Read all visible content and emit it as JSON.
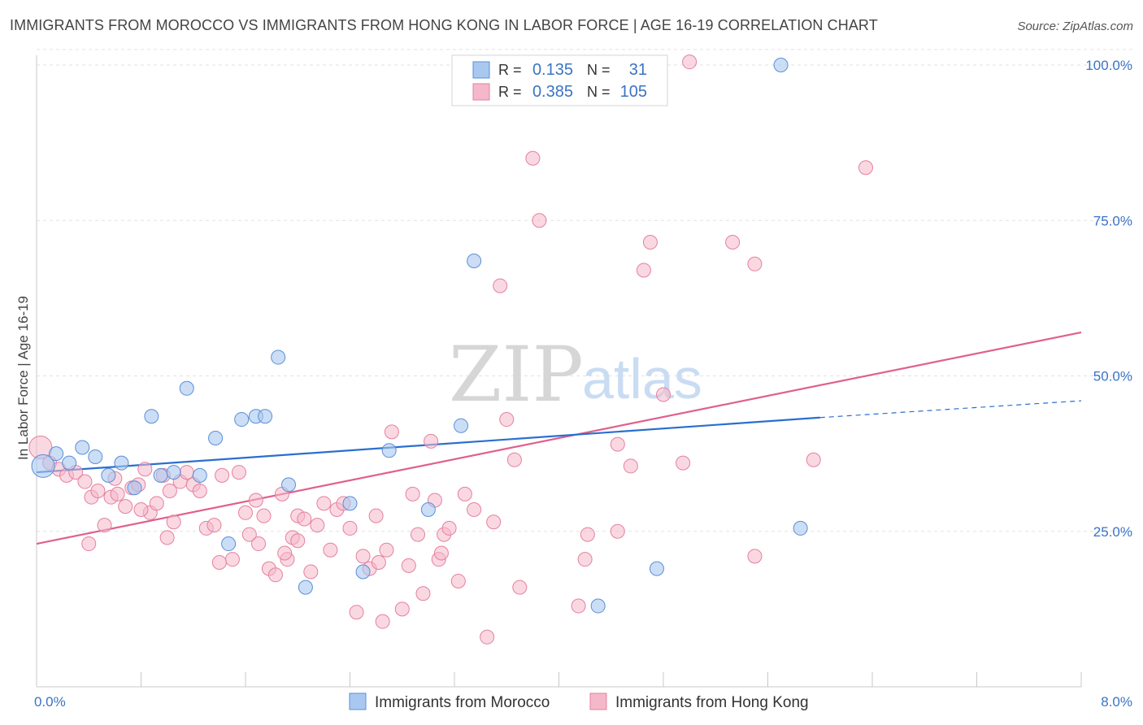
{
  "title": "IMMIGRANTS FROM MOROCCO VS IMMIGRANTS FROM HONG KONG IN LABOR FORCE | AGE 16-19 CORRELATION CHART",
  "source": "Source: ZipAtlas.com",
  "watermark": {
    "zip": "ZIP",
    "atlas": "atlas"
  },
  "colors": {
    "morocco_fill": "#a9c8f0",
    "morocco_stroke": "#5b8fd6",
    "morocco_line": "#2a6fcf",
    "hongkong_fill": "#f5b8cb",
    "hongkong_stroke": "#e5809f",
    "hongkong_line": "#e0608c",
    "axis_label": "#3a74c4",
    "grid": "#e2e2e2"
  },
  "legend": {
    "rows": [
      {
        "series": "morocco",
        "r_label": "R =",
        "r_value": "0.135",
        "n_label": "N =",
        "n_value": "31"
      },
      {
        "series": "hongkong",
        "r_label": "R =",
        "r_value": "0.385",
        "n_label": "N =",
        "n_value": "105"
      }
    ]
  },
  "chart_data": {
    "type": "scatter",
    "xlabel": "",
    "ylabel": "In Labor Force | Age 16-19",
    "xlim": [
      0,
      8
    ],
    "ylim": [
      0,
      105
    ],
    "x_tick_labels": [
      "0.0%",
      "8.0%"
    ],
    "y_ticks": [
      25,
      50,
      75,
      100
    ],
    "y_tick_labels": [
      "25.0%",
      "50.0%",
      "75.0%",
      "100.0%"
    ],
    "grid": true,
    "legend_position": "top-center",
    "series": [
      {
        "name": "Immigrants from Morocco",
        "color": "#a9c8f0",
        "trend": {
          "x0": 0,
          "y0": 34.5,
          "x1": 6.0,
          "y1": 43.3,
          "dash_to_x": 8.0,
          "dash_to_y": 46.0
        },
        "points": [
          {
            "x": 0.05,
            "y": 35.5,
            "big": true
          },
          {
            "x": 0.15,
            "y": 37.5
          },
          {
            "x": 0.25,
            "y": 36.0
          },
          {
            "x": 0.35,
            "y": 38.5
          },
          {
            "x": 0.45,
            "y": 37.0
          },
          {
            "x": 0.55,
            "y": 34.0
          },
          {
            "x": 0.65,
            "y": 36.0
          },
          {
            "x": 0.75,
            "y": 32.0
          },
          {
            "x": 0.88,
            "y": 43.5
          },
          {
            "x": 0.95,
            "y": 34.0
          },
          {
            "x": 1.05,
            "y": 34.5
          },
          {
            "x": 1.15,
            "y": 48.0
          },
          {
            "x": 1.25,
            "y": 34.0
          },
          {
            "x": 1.37,
            "y": 40.0
          },
          {
            "x": 1.47,
            "y": 23.0
          },
          {
            "x": 1.57,
            "y": 43.0
          },
          {
            "x": 1.68,
            "y": 43.5
          },
          {
            "x": 1.75,
            "y": 43.5
          },
          {
            "x": 1.85,
            "y": 53.0
          },
          {
            "x": 1.93,
            "y": 32.5
          },
          {
            "x": 2.06,
            "y": 16.0
          },
          {
            "x": 2.4,
            "y": 29.5
          },
          {
            "x": 2.5,
            "y": 18.5
          },
          {
            "x": 2.7,
            "y": 38.0
          },
          {
            "x": 3.0,
            "y": 28.5
          },
          {
            "x": 3.25,
            "y": 42.0
          },
          {
            "x": 3.35,
            "y": 68.5
          },
          {
            "x": 4.3,
            "y": 13.0
          },
          {
            "x": 4.75,
            "y": 19.0
          },
          {
            "x": 5.7,
            "y": 100.0
          },
          {
            "x": 5.85,
            "y": 25.5
          }
        ]
      },
      {
        "name": "Immigrants from Hong Kong",
        "color": "#f5b8cb",
        "trend": {
          "x0": 0,
          "y0": 23.0,
          "x1": 8.0,
          "y1": 57.0
        },
        "points": [
          {
            "x": 0.03,
            "y": 38.5,
            "big": true
          },
          {
            "x": 0.1,
            "y": 36.0
          },
          {
            "x": 0.17,
            "y": 35.0
          },
          {
            "x": 0.23,
            "y": 34.0
          },
          {
            "x": 0.3,
            "y": 34.5
          },
          {
            "x": 0.37,
            "y": 33.0
          },
          {
            "x": 0.42,
            "y": 30.5
          },
          {
            "x": 0.47,
            "y": 31.5
          },
          {
            "x": 0.52,
            "y": 26.0
          },
          {
            "x": 0.57,
            "y": 30.5
          },
          {
            "x": 0.62,
            "y": 31.0
          },
          {
            "x": 0.68,
            "y": 29.0
          },
          {
            "x": 0.73,
            "y": 32.0
          },
          {
            "x": 0.78,
            "y": 32.5
          },
          {
            "x": 0.83,
            "y": 35.0
          },
          {
            "x": 0.87,
            "y": 28.0
          },
          {
            "x": 0.92,
            "y": 29.5
          },
          {
            "x": 0.97,
            "y": 34.0
          },
          {
            "x": 1.02,
            "y": 31.5
          },
          {
            "x": 1.05,
            "y": 26.5
          },
          {
            "x": 1.1,
            "y": 33.0
          },
          {
            "x": 1.15,
            "y": 34.5
          },
          {
            "x": 1.2,
            "y": 32.5
          },
          {
            "x": 1.25,
            "y": 31.5
          },
          {
            "x": 1.3,
            "y": 25.5
          },
          {
            "x": 1.36,
            "y": 26.0
          },
          {
            "x": 1.42,
            "y": 34.0
          },
          {
            "x": 1.5,
            "y": 20.5
          },
          {
            "x": 1.55,
            "y": 34.5
          },
          {
            "x": 1.6,
            "y": 28.0
          },
          {
            "x": 1.63,
            "y": 24.5
          },
          {
            "x": 1.7,
            "y": 23.0
          },
          {
            "x": 1.74,
            "y": 27.5
          },
          {
            "x": 1.78,
            "y": 19.0
          },
          {
            "x": 1.83,
            "y": 18.0
          },
          {
            "x": 1.88,
            "y": 31.0
          },
          {
            "x": 1.92,
            "y": 20.5
          },
          {
            "x": 1.96,
            "y": 24.0
          },
          {
            "x": 2.0,
            "y": 27.5
          },
          {
            "x": 2.05,
            "y": 27.0
          },
          {
            "x": 2.1,
            "y": 18.5
          },
          {
            "x": 2.15,
            "y": 26.0
          },
          {
            "x": 2.2,
            "y": 29.5
          },
          {
            "x": 2.25,
            "y": 22.0
          },
          {
            "x": 2.3,
            "y": 28.5
          },
          {
            "x": 2.35,
            "y": 29.5
          },
          {
            "x": 2.4,
            "y": 25.5
          },
          {
            "x": 2.45,
            "y": 12.0
          },
          {
            "x": 2.5,
            "y": 21.0
          },
          {
            "x": 2.55,
            "y": 19.0
          },
          {
            "x": 2.6,
            "y": 27.5
          },
          {
            "x": 2.65,
            "y": 10.5
          },
          {
            "x": 2.68,
            "y": 22.0
          },
          {
            "x": 2.72,
            "y": 41.0
          },
          {
            "x": 2.8,
            "y": 12.5
          },
          {
            "x": 2.85,
            "y": 19.5
          },
          {
            "x": 2.88,
            "y": 31.0
          },
          {
            "x": 2.92,
            "y": 24.5
          },
          {
            "x": 2.96,
            "y": 15.0
          },
          {
            "x": 3.02,
            "y": 39.5
          },
          {
            "x": 3.08,
            "y": 20.5
          },
          {
            "x": 3.1,
            "y": 21.5
          },
          {
            "x": 3.12,
            "y": 24.5
          },
          {
            "x": 3.16,
            "y": 25.5
          },
          {
            "x": 3.23,
            "y": 17.0
          },
          {
            "x": 3.28,
            "y": 31.0
          },
          {
            "x": 3.35,
            "y": 28.5
          },
          {
            "x": 3.45,
            "y": 8.0
          },
          {
            "x": 3.5,
            "y": 26.5
          },
          {
            "x": 3.6,
            "y": 43.0
          },
          {
            "x": 3.66,
            "y": 36.5
          },
          {
            "x": 3.7,
            "y": 16.0
          },
          {
            "x": 3.8,
            "y": 85.0
          },
          {
            "x": 3.85,
            "y": 75.0
          },
          {
            "x": 3.55,
            "y": 64.5
          },
          {
            "x": 4.15,
            "y": 13.0
          },
          {
            "x": 4.2,
            "y": 20.5
          },
          {
            "x": 4.22,
            "y": 24.5
          },
          {
            "x": 4.45,
            "y": 39.0
          },
          {
            "x": 4.45,
            "y": 25.0
          },
          {
            "x": 4.55,
            "y": 35.5
          },
          {
            "x": 4.65,
            "y": 67.0
          },
          {
            "x": 4.7,
            "y": 71.5
          },
          {
            "x": 4.8,
            "y": 47.0
          },
          {
            "x": 4.95,
            "y": 36.0
          },
          {
            "x": 5.0,
            "y": 100.5
          },
          {
            "x": 5.33,
            "y": 71.5
          },
          {
            "x": 5.5,
            "y": 68.0
          },
          {
            "x": 5.5,
            "y": 21.0
          },
          {
            "x": 5.95,
            "y": 36.5
          },
          {
            "x": 6.35,
            "y": 83.5
          },
          {
            "x": 0.4,
            "y": 23.0
          },
          {
            "x": 1.0,
            "y": 24.0
          },
          {
            "x": 1.4,
            "y": 20.0
          },
          {
            "x": 1.68,
            "y": 30.0
          },
          {
            "x": 1.9,
            "y": 21.5
          },
          {
            "x": 0.8,
            "y": 28.5
          },
          {
            "x": 0.6,
            "y": 33.5
          },
          {
            "x": 2.0,
            "y": 23.5
          },
          {
            "x": 2.62,
            "y": 20.0
          },
          {
            "x": 3.05,
            "y": 30.0
          }
        ]
      }
    ]
  }
}
